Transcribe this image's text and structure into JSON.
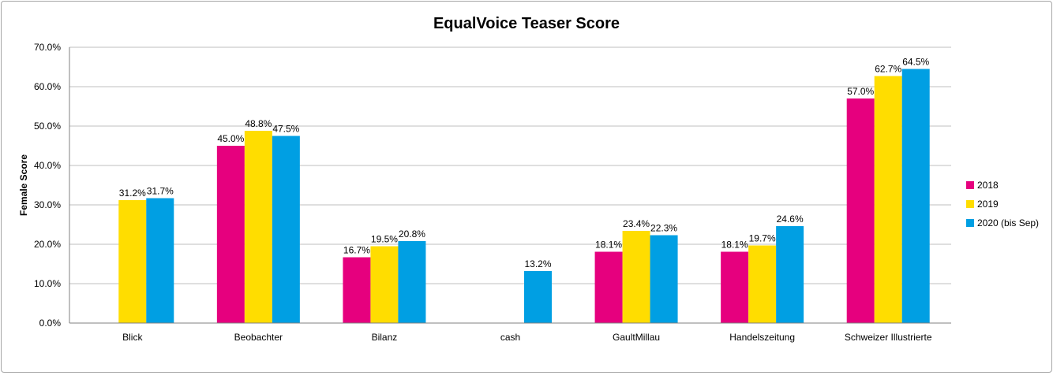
{
  "chart_data": {
    "type": "bar",
    "title": "EqualVoice Teaser Score",
    "ylabel": "Female Score",
    "xlabel": "",
    "ylim": [
      0,
      70
    ],
    "y_ticks": [
      "0.0%",
      "10.0%",
      "20.0%",
      "30.0%",
      "40.0%",
      "50.0%",
      "60.0%",
      "70.0%"
    ],
    "grid": true,
    "legend_position": "right",
    "categories": [
      "Blick",
      "Beobachter",
      "Bilanz",
      "cash",
      "GaultMillau",
      "Handelszeitung",
      "Schweizer Illustrierte"
    ],
    "series": [
      {
        "name": "2018",
        "color": "#e6007e",
        "values": [
          null,
          45.0,
          16.7,
          null,
          18.1,
          18.1,
          57.0
        ],
        "labels": [
          "",
          "45.0%",
          "16.7%",
          "",
          "18.1%",
          "18.1%",
          "57.0%"
        ]
      },
      {
        "name": "2019",
        "color": "#ffdd00",
        "values": [
          31.2,
          48.8,
          19.5,
          null,
          23.4,
          19.7,
          62.7
        ],
        "labels": [
          "31.2%",
          "48.8%",
          "19.5%",
          "",
          "23.4%",
          "19.7%",
          "62.7%"
        ]
      },
      {
        "name": "2020 (bis Sep)",
        "color": "#009fe3",
        "values": [
          31.7,
          47.5,
          20.8,
          13.2,
          22.3,
          24.6,
          64.5
        ],
        "labels": [
          "31.7%",
          "47.5%",
          "20.8%",
          "13.2%",
          "22.3%",
          "24.6%",
          "64.5%"
        ]
      }
    ]
  }
}
